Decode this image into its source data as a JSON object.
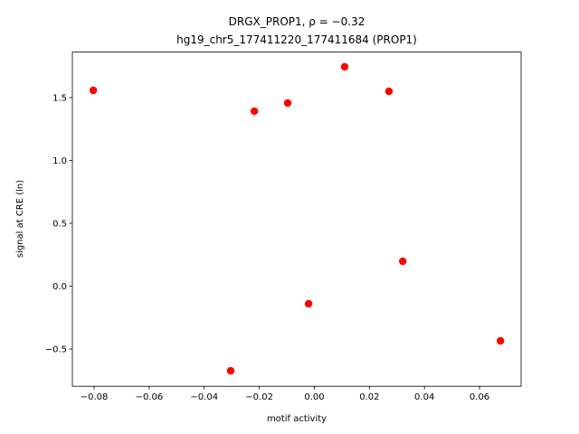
{
  "chart_data": {
    "type": "scatter",
    "title": "DRGX_PROP1, ρ = −0.32",
    "subtitle": "hg19_chr5_177411220_177411684 (PROP1)",
    "x_label": "motif activity",
    "y_label": "signal at CRE (ln)",
    "color": "#ff0000",
    "x": [
      -0.0803,
      -0.0218,
      -0.0097,
      0.011,
      0.0271,
      0.0321,
      -0.0021,
      -0.0304,
      0.0676
    ],
    "values": [
      1.557,
      1.392,
      1.457,
      1.745,
      1.55,
      0.198,
      -0.14,
      -0.673,
      -0.435
    ],
    "xlim": [
      -0.0879,
      0.0751
    ],
    "ylim": [
      -0.796,
      1.862
    ],
    "xticks": [
      {
        "value": -0.08,
        "label": "−0.08"
      },
      {
        "value": -0.06,
        "label": "−0.06"
      },
      {
        "value": -0.04,
        "label": "−0.04"
      },
      {
        "value": -0.02,
        "label": "−0.02"
      },
      {
        "value": 0,
        "label": "0.00"
      },
      {
        "value": 0.02,
        "label": "0.02"
      },
      {
        "value": 0.04,
        "label": "0.04"
      },
      {
        "value": 0.06,
        "label": "0.06"
      }
    ],
    "yticks": [
      {
        "value": -0.5,
        "label": "−0.5"
      },
      {
        "value": 0,
        "label": "0.0"
      },
      0.5,
      {
        "value": 1,
        "label": "1.0"
      },
      1.5
    ]
  }
}
